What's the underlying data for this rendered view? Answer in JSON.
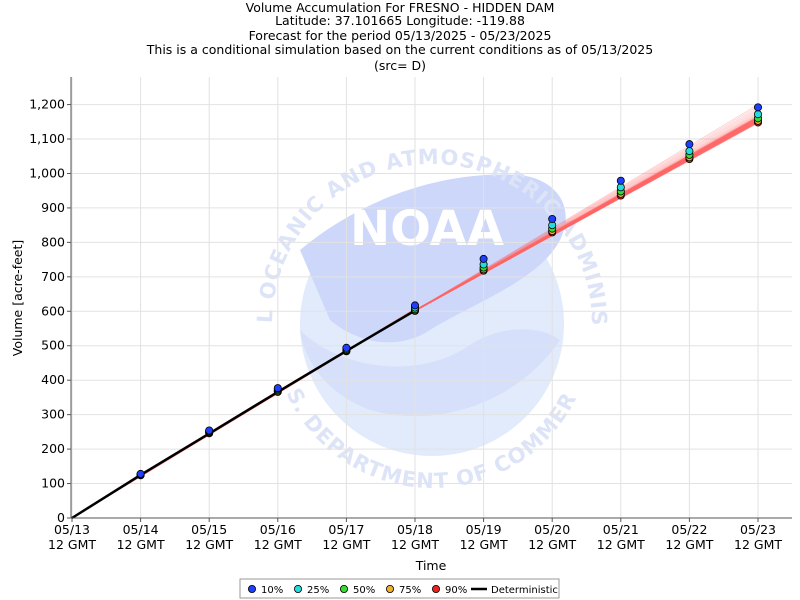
{
  "header": {
    "title_lines": [
      "Volume Accumulation For FRESNO - HIDDEN DAM",
      "Latitude: 37.101665 Longitude: -119.88",
      "Forecast for the period 05/13/2025 - 05/23/2025",
      "This is a conditional simulation based on the current conditions as of 05/13/2025",
      "(src= D)"
    ]
  },
  "watermark": {
    "logo_text": "NOAA",
    "ring_text_top": "NATIONAL OCEANIC AND ATMOSPHERIC ADMINISTRATION",
    "ring_text_bottom": "U.S. DEPARTMENT OF COMMERCE"
  },
  "chart_data": {
    "type": "line",
    "xlabel": "Time",
    "ylabel": "Volume [acre-feet]",
    "ylim": [
      0,
      1280
    ],
    "yticks": [
      0,
      100,
      200,
      300,
      400,
      500,
      600,
      700,
      800,
      900,
      1000,
      1100,
      1200
    ],
    "ytick_labels": [
      "0",
      "100",
      "200",
      "300",
      "400",
      "500",
      "600",
      "700",
      "800",
      "900",
      "1,000",
      "1,100",
      "1,200"
    ],
    "x_ticks": [
      {
        "date": "05/13",
        "time": "12 GMT"
      },
      {
        "date": "05/14",
        "time": "12 GMT"
      },
      {
        "date": "05/15",
        "time": "12 GMT"
      },
      {
        "date": "05/16",
        "time": "12 GMT"
      },
      {
        "date": "05/17",
        "time": "12 GMT"
      },
      {
        "date": "05/18",
        "time": "12 GMT"
      },
      {
        "date": "05/19",
        "time": "12 GMT"
      },
      {
        "date": "05/20",
        "time": "12 GMT"
      },
      {
        "date": "05/21",
        "time": "12 GMT"
      },
      {
        "date": "05/22",
        "time": "12 GMT"
      },
      {
        "date": "05/23",
        "time": "12 GMT"
      }
    ],
    "grid": true,
    "legend_placement": "bottom",
    "deterministic": {
      "name": "Deterministic",
      "color": "#000000",
      "x": [
        "05/13",
        "05/14",
        "05/15",
        "05/16",
        "05/17",
        "05/18"
      ],
      "values": [
        0,
        125,
        245,
        366,
        485,
        602
      ]
    },
    "percentiles": [
      {
        "name": "10%",
        "color": "#1f3fff",
        "x": [
          "05/14",
          "05/15",
          "05/16",
          "05/17",
          "05/18",
          "05/19",
          "05/20",
          "05/21",
          "05/22",
          "05/23"
        ],
        "values": [
          128,
          254,
          377,
          494,
          617,
          752,
          868,
          979,
          1085,
          1192
        ]
      },
      {
        "name": "25%",
        "color": "#22dddd",
        "x": [
          "05/14",
          "05/15",
          "05/16",
          "05/17",
          "05/18",
          "05/19",
          "05/20",
          "05/21",
          "05/22",
          "05/23"
        ],
        "values": [
          127,
          252,
          374,
          491,
          611,
          736,
          850,
          960,
          1065,
          1172
        ]
      },
      {
        "name": "50%",
        "color": "#33dd33",
        "x": [
          "05/14",
          "05/15",
          "05/16",
          "05/17",
          "05/18",
          "05/19",
          "05/20",
          "05/21",
          "05/22",
          "05/23"
        ],
        "values": [
          126,
          250,
          371,
          488,
          606,
          727,
          840,
          948,
          1054,
          1160
        ]
      },
      {
        "name": "75%",
        "color": "#f0b030",
        "x": [
          "05/14",
          "05/15",
          "05/16",
          "05/17",
          "05/18",
          "05/19",
          "05/20",
          "05/21",
          "05/22",
          "05/23"
        ],
        "values": [
          125,
          248,
          368,
          486,
          603,
          722,
          833,
          941,
          1047,
          1153
        ]
      },
      {
        "name": "90%",
        "color": "#ee2222",
        "x": [
          "05/14",
          "05/15",
          "05/16",
          "05/17",
          "05/18",
          "05/19",
          "05/20",
          "05/21",
          "05/22",
          "05/23"
        ],
        "values": [
          124,
          246,
          366,
          484,
          601,
          718,
          829,
          936,
          1042,
          1148
        ]
      }
    ],
    "ensemble_end_values": [
      1148,
      1150,
      1152,
      1154,
      1156,
      1158,
      1160,
      1162,
      1164,
      1166,
      1168,
      1170,
      1172,
      1175,
      1178,
      1182,
      1186,
      1190,
      1195,
      1200
    ],
    "ensemble_color": "#ff6666",
    "legend": [
      {
        "label": "10%",
        "color": "#1f3fff",
        "kind": "dot"
      },
      {
        "label": "25%",
        "color": "#22dddd",
        "kind": "dot"
      },
      {
        "label": "50%",
        "color": "#33dd33",
        "kind": "dot"
      },
      {
        "label": "75%",
        "color": "#f0b030",
        "kind": "dot"
      },
      {
        "label": "90%",
        "color": "#ee2222",
        "kind": "dot"
      },
      {
        "label": "Deterministic",
        "color": "#000000",
        "kind": "line"
      }
    ]
  }
}
